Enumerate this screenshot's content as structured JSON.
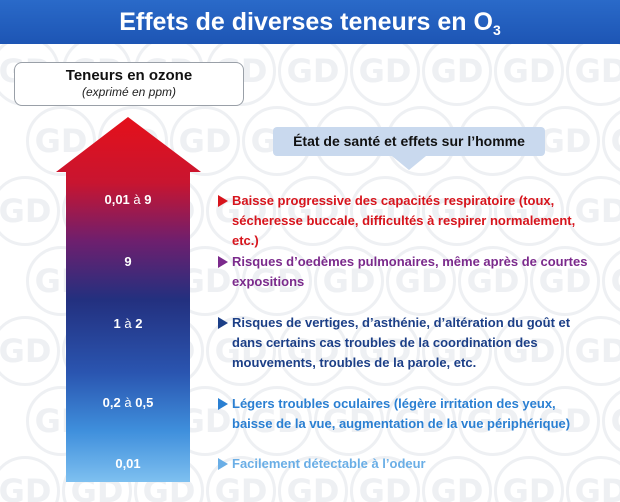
{
  "header": {
    "title": "Effets de diverses teneurs en O",
    "subscript": "3"
  },
  "legend": {
    "title": "Teneurs en ozone",
    "subtitle": "(exprimé en ppm)"
  },
  "health_box": {
    "label": "État de santé et effets sur l’homme"
  },
  "watermark": {
    "text": "GD"
  },
  "levels": [
    {
      "from": "0,01",
      "sep": "à",
      "to": "9",
      "color": "#d7141c",
      "effect": "Baisse progressive des capacités respiratoire (toux, sécheresse buccale, difficultés à respirer normalement, etc.)"
    },
    {
      "from": "9",
      "sep": "",
      "to": "",
      "color": "#7b2a8c",
      "effect": "Risques d’oedèmes pulmonaires, même après de courtes expositions"
    },
    {
      "from": "1",
      "sep": "à",
      "to": "2",
      "color": "#1c3f87",
      "effect": "Risques de vertiges, d’asthénie, d’altération du goût et dans certains cas troubles de la coordination des mouvements, troubles de la parole, etc."
    },
    {
      "from": "0,2",
      "sep": "à",
      "to": "0,5",
      "color": "#2a7fd2",
      "effect": "Légers troubles oculaires (légère irritation des yeux, baisse de la vue, augmentation de la vue périphérique)"
    },
    {
      "from": "0,01",
      "sep": "",
      "to": "",
      "color": "#6aaee6",
      "effect": "Facilement détectable à l’odeur"
    }
  ]
}
